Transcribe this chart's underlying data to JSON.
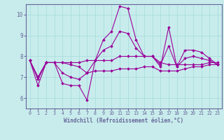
{
  "xlabel": "Windchill (Refroidissement éolien,°C)",
  "background_color": "#c8ecec",
  "grid_color": "#aadddd",
  "line_color": "#990099",
  "axis_color": "#666699",
  "x_hours": [
    0,
    1,
    2,
    3,
    4,
    5,
    6,
    7,
    8,
    9,
    10,
    11,
    12,
    13,
    14,
    15,
    16,
    17,
    18,
    19,
    20,
    21,
    22,
    23
  ],
  "series": [
    [
      7.8,
      6.6,
      7.7,
      7.7,
      6.7,
      6.6,
      6.6,
      5.9,
      7.8,
      8.8,
      9.2,
      10.4,
      10.3,
      8.8,
      8.0,
      8.0,
      7.5,
      9.4,
      7.5,
      8.3,
      8.3,
      8.2,
      7.9,
      7.6
    ],
    [
      7.8,
      7.0,
      7.7,
      7.7,
      7.7,
      7.7,
      7.7,
      7.8,
      7.8,
      7.8,
      7.8,
      8.0,
      8.0,
      8.0,
      8.0,
      8.0,
      7.7,
      7.6,
      7.6,
      7.6,
      7.6,
      7.6,
      7.7,
      7.7
    ],
    [
      7.8,
      6.9,
      7.7,
      7.7,
      7.2,
      7.0,
      6.9,
      7.2,
      7.8,
      8.3,
      8.5,
      9.2,
      9.1,
      8.4,
      8.0,
      8.0,
      7.6,
      8.5,
      7.5,
      7.9,
      8.0,
      7.9,
      7.8,
      7.6
    ],
    [
      7.8,
      7.0,
      7.7,
      7.7,
      7.7,
      7.6,
      7.5,
      7.2,
      7.3,
      7.3,
      7.3,
      7.4,
      7.4,
      7.4,
      7.5,
      7.5,
      7.3,
      7.3,
      7.3,
      7.4,
      7.5,
      7.5,
      7.6,
      7.6
    ]
  ],
  "ylim": [
    5.5,
    10.5
  ],
  "yticks": [
    6,
    7,
    8,
    9,
    10
  ],
  "xlim": [
    -0.5,
    23.5
  ],
  "xticks": [
    0,
    1,
    2,
    3,
    4,
    5,
    6,
    7,
    8,
    9,
    10,
    11,
    12,
    13,
    14,
    15,
    16,
    17,
    18,
    19,
    20,
    21,
    22,
    23
  ]
}
